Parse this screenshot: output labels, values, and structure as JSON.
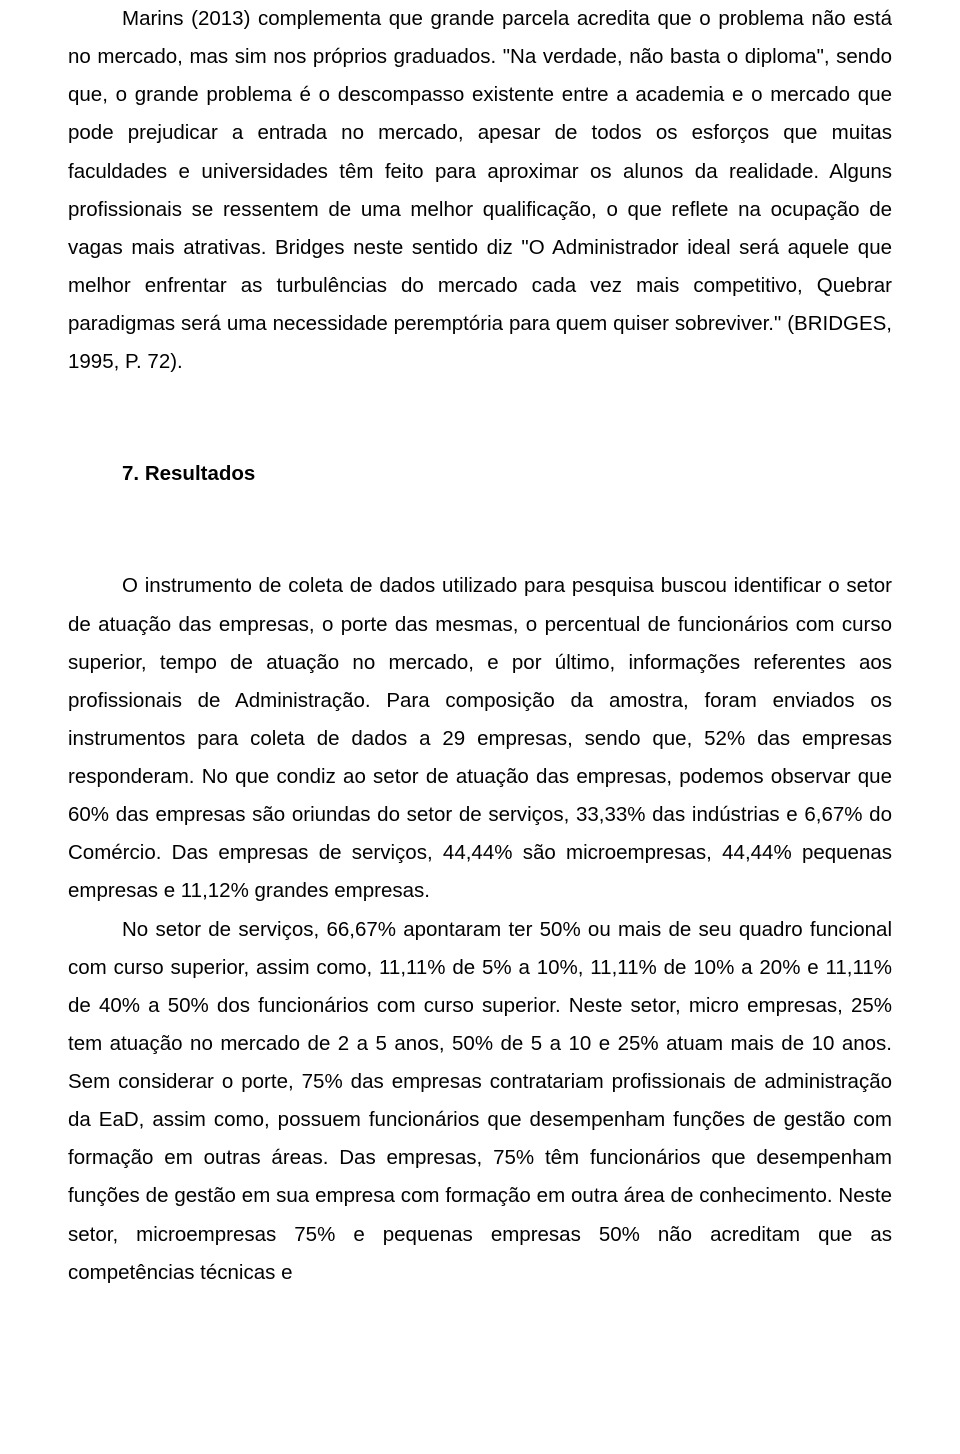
{
  "paragraph1": "Marins (2013) complementa que grande parcela acredita que o problema não está no mercado, mas sim nos próprios graduados. \"Na verdade, não basta o diploma\", sendo que, o grande problema é o descompasso existente entre a academia e o mercado que pode prejudicar a entrada no mercado, apesar de todos os esforços que muitas faculdades e universidades têm feito para aproximar os alunos da realidade. Alguns profissionais se ressentem de uma melhor qualificação, o que reflete na ocupação de vagas mais atrativas. Bridges neste sentido diz \"O Administrador ideal será aquele que melhor enfrentar as turbulências do mercado cada vez mais competitivo, Quebrar paradigmas será uma necessidade peremptória para quem quiser sobreviver.\" (BRIDGES, 1995, P. 72).",
  "section_number": "7.",
  "section_title": "Resultados",
  "paragraph2": "O instrumento de coleta de dados utilizado para pesquisa buscou identificar o setor de atuação das empresas, o porte das mesmas, o percentual de funcionários com curso superior, tempo de atuação no mercado, e por último, informações referentes aos profissionais de Administração. Para composição da amostra, foram enviados os instrumentos para coleta de dados a 29 empresas, sendo que, 52% das empresas responderam. No que condiz ao setor de atuação das empresas, podemos observar que 60% das empresas são oriundas do setor de serviços, 33,33% das indústrias e 6,67% do Comércio. Das empresas de serviços, 44,44% são microempresas, 44,44% pequenas empresas e 11,12% grandes empresas.",
  "paragraph3": "No setor de serviços, 66,67% apontaram ter 50% ou mais de seu quadro funcional com curso superior, assim como, 11,11% de 5% a 10%, 11,11% de 10% a 20% e 11,11% de 40% a 50% dos funcionários com curso superior. Neste setor, micro empresas, 25% tem atuação no mercado de 2 a 5 anos, 50% de 5 a 10 e 25% atuam mais de 10 anos. Sem considerar o porte, 75% das empresas contratariam profissionais de administração da EaD, assim como, possuem funcionários que desempenham funções de gestão com formação em outras áreas. Das empresas, 75% têm funcionários que desempenham funções de gestão em sua empresa com formação em outra área de conhecimento. Neste setor, microempresas 75% e pequenas empresas 50% não acreditam que as competências técnicas e"
}
